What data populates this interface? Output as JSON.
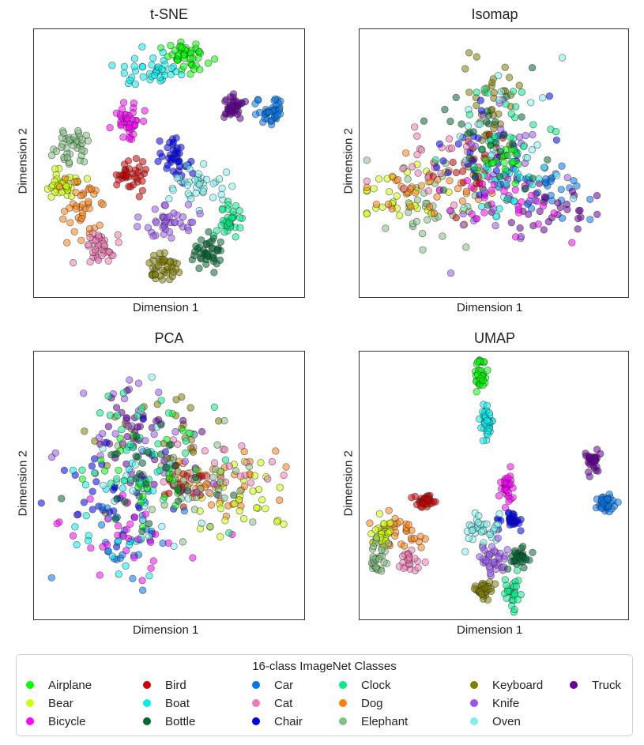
{
  "classes": [
    {
      "name": "Airplane",
      "color": "#00ff00"
    },
    {
      "name": "Bear",
      "color": "#ccff00"
    },
    {
      "name": "Bicycle",
      "color": "#ff00ff"
    },
    {
      "name": "Bird",
      "color": "#cc0000"
    },
    {
      "name": "Boat",
      "color": "#00eeee"
    },
    {
      "name": "Bottle",
      "color": "#006633"
    },
    {
      "name": "Car",
      "color": "#0077ee"
    },
    {
      "name": "Cat",
      "color": "#f07ab4"
    },
    {
      "name": "Chair",
      "color": "#0000ee"
    },
    {
      "name": "Clock",
      "color": "#00ee88"
    },
    {
      "name": "Dog",
      "color": "#ff7f0e"
    },
    {
      "name": "Elephant",
      "color": "#80c080"
    },
    {
      "name": "Keyboard",
      "color": "#808000"
    },
    {
      "name": "Knife",
      "color": "#9955ee"
    },
    {
      "name": "Oven",
      "color": "#80eeee"
    },
    {
      "name": "Truck",
      "color": "#660099"
    }
  ],
  "legend": {
    "title": "16-class ImageNet Classes"
  },
  "chart_data": [
    {
      "type": "scatter",
      "title": "t-SNE",
      "xlabel": "Dimension 1",
      "ylabel": "Dimension 2",
      "xlim": [
        0,
        100
      ],
      "ylim": [
        0,
        100
      ],
      "grid": false,
      "clusters": [
        {
          "class": "Airplane",
          "center": [
            57,
            91
          ],
          "spread": [
            4,
            3
          ],
          "n": 45
        },
        {
          "class": "Boat",
          "center": [
            43,
            86
          ],
          "spread": [
            6,
            3
          ],
          "n": 40
        },
        {
          "class": "Bicycle",
          "center": [
            34,
            67
          ],
          "spread": [
            3,
            3
          ],
          "n": 40
        },
        {
          "class": "Truck",
          "center": [
            75,
            72
          ],
          "spread": [
            3,
            2.5
          ],
          "n": 40
        },
        {
          "class": "Car",
          "center": [
            89,
            70
          ],
          "spread": [
            2.5,
            3
          ],
          "n": 40
        },
        {
          "class": "Elephant",
          "center": [
            13,
            57
          ],
          "spread": [
            3.5,
            4
          ],
          "n": 40
        },
        {
          "class": "Chair",
          "center": [
            52,
            52
          ],
          "spread": [
            3.5,
            4
          ],
          "n": 40
        },
        {
          "class": "Bird",
          "center": [
            35,
            45
          ],
          "spread": [
            3,
            3
          ],
          "n": 35
        },
        {
          "class": "Bear",
          "center": [
            9,
            42
          ],
          "spread": [
            3,
            3
          ],
          "n": 35
        },
        {
          "class": "Oven",
          "center": [
            62,
            42
          ],
          "spread": [
            5,
            3.5
          ],
          "n": 40
        },
        {
          "class": "Dog",
          "center": [
            17,
            32
          ],
          "spread": [
            4,
            6
          ],
          "n": 40
        },
        {
          "class": "Knife",
          "center": [
            50,
            28
          ],
          "spread": [
            5,
            3
          ],
          "n": 40
        },
        {
          "class": "Clock",
          "center": [
            73,
            28
          ],
          "spread": [
            2.5,
            4
          ],
          "n": 35
        },
        {
          "class": "Cat",
          "center": [
            23,
            17
          ],
          "spread": [
            3,
            3
          ],
          "n": 40
        },
        {
          "class": "Bottle",
          "center": [
            65,
            15
          ],
          "spread": [
            4,
            3
          ],
          "n": 40
        },
        {
          "class": "Keyboard",
          "center": [
            48,
            10
          ],
          "spread": [
            3,
            3
          ],
          "n": 40
        }
      ]
    },
    {
      "type": "scatter",
      "title": "Isomap",
      "xlabel": "Dimension 1",
      "ylabel": "Dimension 2",
      "xlim": [
        0,
        100
      ],
      "ylim": [
        0,
        100
      ],
      "grid": false,
      "clusters": [
        {
          "class": "Keyboard",
          "center": [
            48,
            70
          ],
          "spread": [
            6,
            10
          ],
          "n": 35
        },
        {
          "class": "Elephant",
          "center": [
            20,
            30
          ],
          "spread": [
            10,
            8
          ],
          "n": 35
        },
        {
          "class": "Bear",
          "center": [
            15,
            38
          ],
          "spread": [
            10,
            6
          ],
          "n": 30
        },
        {
          "class": "Dog",
          "center": [
            25,
            40
          ],
          "spread": [
            10,
            7
          ],
          "n": 35
        },
        {
          "class": "Cat",
          "center": [
            25,
            48
          ],
          "spread": [
            10,
            8
          ],
          "n": 30
        },
        {
          "class": "Bird",
          "center": [
            43,
            48
          ],
          "spread": [
            6,
            6
          ],
          "n": 25
        },
        {
          "class": "Car",
          "center": [
            72,
            42
          ],
          "spread": [
            8,
            6
          ],
          "n": 30
        },
        {
          "class": "Truck",
          "center": [
            72,
            33
          ],
          "spread": [
            10,
            7
          ],
          "n": 30
        },
        {
          "class": "Knife",
          "center": [
            55,
            45
          ],
          "spread": [
            15,
            15
          ],
          "n": 35
        },
        {
          "class": "Chair",
          "center": [
            48,
            55
          ],
          "spread": [
            10,
            10
          ],
          "n": 30
        },
        {
          "class": "Oven",
          "center": [
            55,
            55
          ],
          "spread": [
            12,
            14
          ],
          "n": 30
        },
        {
          "class": "Boat",
          "center": [
            55,
            45
          ],
          "spread": [
            5,
            6
          ],
          "n": 25
        },
        {
          "class": "Bicycle",
          "center": [
            55,
            35
          ],
          "spread": [
            12,
            8
          ],
          "n": 30
        },
        {
          "class": "Airplane",
          "center": [
            52,
            50
          ],
          "spread": [
            5,
            5
          ],
          "n": 20
        },
        {
          "class": "Clock",
          "center": [
            52,
            60
          ],
          "spread": [
            10,
            12
          ],
          "n": 25
        },
        {
          "class": "Bottle",
          "center": [
            45,
            60
          ],
          "spread": [
            12,
            12
          ],
          "n": 30
        }
      ]
    },
    {
      "type": "scatter",
      "title": "PCA",
      "xlabel": "Dimension 1",
      "ylabel": "Dimension 2",
      "xlim": [
        0,
        100
      ],
      "ylim": [
        0,
        100
      ],
      "grid": false,
      "clusters": [
        {
          "class": "Dog",
          "center": [
            70,
            52
          ],
          "spread": [
            10,
            6
          ],
          "n": 40
        },
        {
          "class": "Bear",
          "center": [
            75,
            45
          ],
          "spread": [
            10,
            8
          ],
          "n": 35
        },
        {
          "class": "Cat",
          "center": [
            65,
            55
          ],
          "spread": [
            12,
            7
          ],
          "n": 30
        },
        {
          "class": "Bird",
          "center": [
            55,
            50
          ],
          "spread": [
            6,
            5
          ],
          "n": 25
        },
        {
          "class": "Elephant",
          "center": [
            60,
            50
          ],
          "spread": [
            15,
            10
          ],
          "n": 35
        },
        {
          "class": "Keyboard",
          "center": [
            45,
            70
          ],
          "spread": [
            12,
            12
          ],
          "n": 30
        },
        {
          "class": "Knife",
          "center": [
            35,
            65
          ],
          "spread": [
            14,
            14
          ],
          "n": 35
        },
        {
          "class": "Truck",
          "center": [
            38,
            72
          ],
          "spread": [
            10,
            8
          ],
          "n": 30
        },
        {
          "class": "Chair",
          "center": [
            30,
            45
          ],
          "spread": [
            12,
            12
          ],
          "n": 35
        },
        {
          "class": "Car",
          "center": [
            35,
            30
          ],
          "spread": [
            10,
            10
          ],
          "n": 30
        },
        {
          "class": "Boat",
          "center": [
            30,
            40
          ],
          "spread": [
            12,
            14
          ],
          "n": 30
        },
        {
          "class": "Oven",
          "center": [
            38,
            50
          ],
          "spread": [
            14,
            14
          ],
          "n": 30
        },
        {
          "class": "Bicycle",
          "center": [
            35,
            30
          ],
          "spread": [
            14,
            10
          ],
          "n": 30
        },
        {
          "class": "Airplane",
          "center": [
            40,
            55
          ],
          "spread": [
            12,
            12
          ],
          "n": 25
        },
        {
          "class": "Clock",
          "center": [
            40,
            60
          ],
          "spread": [
            14,
            12
          ],
          "n": 30
        },
        {
          "class": "Bottle",
          "center": [
            45,
            55
          ],
          "spread": [
            14,
            12
          ],
          "n": 30
        }
      ]
    },
    {
      "type": "scatter",
      "title": "UMAP",
      "xlabel": "Dimension 1",
      "ylabel": "Dimension 2",
      "xlim": [
        0,
        100
      ],
      "ylim": [
        0,
        100
      ],
      "grid": false,
      "clusters": [
        {
          "class": "Airplane",
          "center": [
            45,
            92
          ],
          "spread": [
            1.2,
            3
          ],
          "n": 35
        },
        {
          "class": "Boat",
          "center": [
            47,
            75
          ],
          "spread": [
            1.3,
            3.5
          ],
          "n": 35
        },
        {
          "class": "Truck",
          "center": [
            88,
            60
          ],
          "spread": [
            1.5,
            2.5
          ],
          "n": 30
        },
        {
          "class": "Car",
          "center": [
            93,
            43
          ],
          "spread": [
            2,
            1.5
          ],
          "n": 35
        },
        {
          "class": "Bicycle",
          "center": [
            55,
            50
          ],
          "spread": [
            1.5,
            3
          ],
          "n": 30
        },
        {
          "class": "Bird",
          "center": [
            24,
            44
          ],
          "spread": [
            2,
            1.5
          ],
          "n": 30
        },
        {
          "class": "Chair",
          "center": [
            57,
            37
          ],
          "spread": [
            2,
            2
          ],
          "n": 30
        },
        {
          "class": "Oven",
          "center": [
            47,
            34
          ],
          "spread": [
            4,
            3
          ],
          "n": 35
        },
        {
          "class": "Dog",
          "center": [
            15,
            32
          ],
          "spread": [
            4,
            4
          ],
          "n": 35
        },
        {
          "class": "Bear",
          "center": [
            7,
            32
          ],
          "spread": [
            2,
            3
          ],
          "n": 25
        },
        {
          "class": "Elephant",
          "center": [
            5,
            22
          ],
          "spread": [
            2,
            3
          ],
          "n": 30
        },
        {
          "class": "Cat",
          "center": [
            18,
            20
          ],
          "spread": [
            2,
            2
          ],
          "n": 20
        },
        {
          "class": "Knife",
          "center": [
            50,
            22
          ],
          "spread": [
            3,
            4
          ],
          "n": 35
        },
        {
          "class": "Bottle",
          "center": [
            60,
            22
          ],
          "spread": [
            2,
            2
          ],
          "n": 30
        },
        {
          "class": "Keyboard",
          "center": [
            46,
            10
          ],
          "spread": [
            2,
            1.5
          ],
          "n": 30
        },
        {
          "class": "Clock",
          "center": [
            57,
            8
          ],
          "spread": [
            2,
            4
          ],
          "n": 25
        }
      ]
    }
  ]
}
